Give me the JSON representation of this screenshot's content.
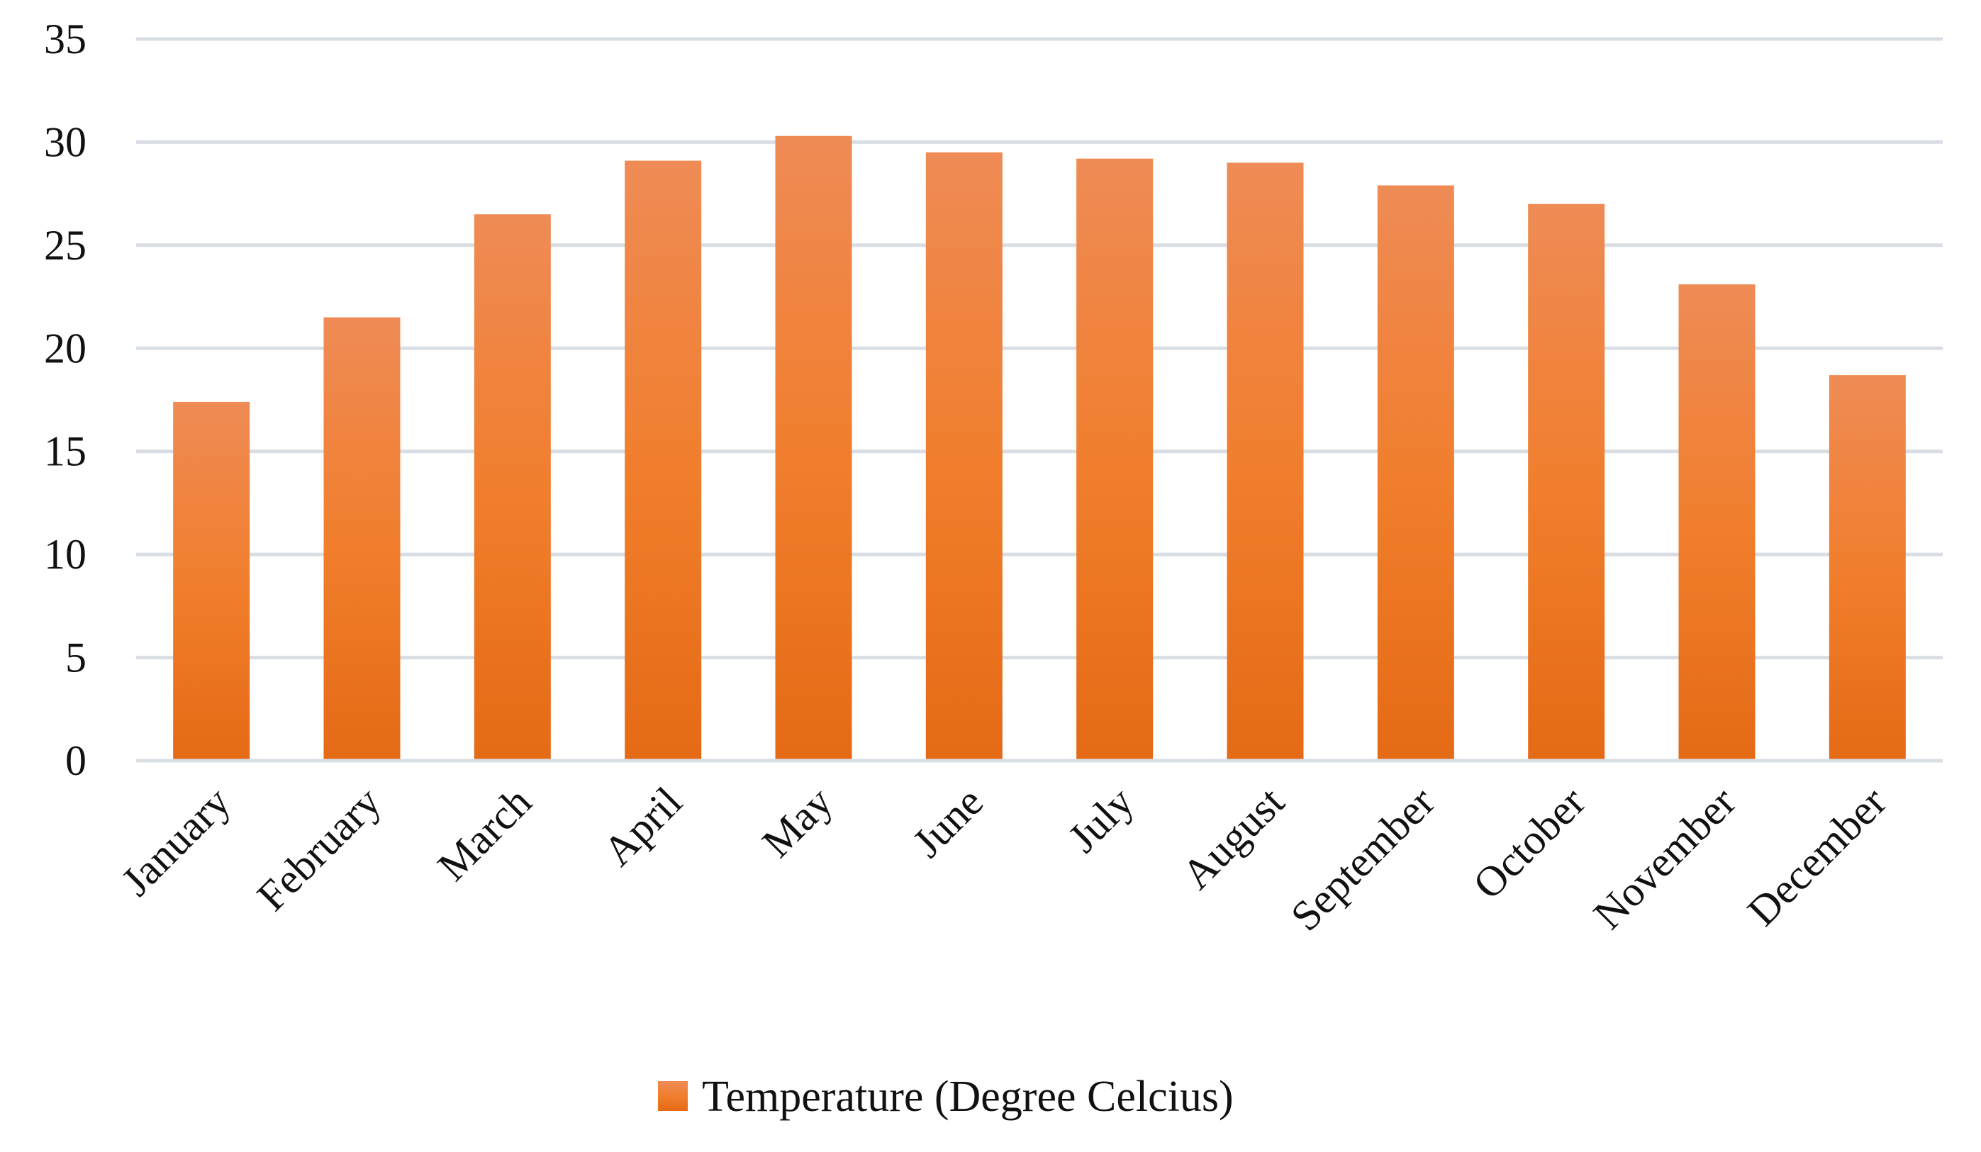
{
  "chart_data": {
    "type": "bar",
    "title": "",
    "xlabel": "",
    "ylabel": "",
    "ylim": [
      0,
      35
    ],
    "yticks": [
      "0",
      "5",
      "10",
      "15",
      "20",
      "25",
      "30",
      "35"
    ],
    "grid": true,
    "legend_position": "bottom-center",
    "categories": [
      "January",
      "February",
      "March",
      "April",
      "May",
      "June",
      "July",
      "August",
      "September",
      "October",
      "November",
      "December"
    ],
    "series": [
      {
        "name": "Temperature (Degree Celcius)",
        "values": [
          17.4,
          21.5,
          26.5,
          29.1,
          30.3,
          29.5,
          29.2,
          29.0,
          27.9,
          27.0,
          23.1,
          18.7
        ],
        "color": "#F07D2A",
        "color_light": "#EF8B55",
        "color_dark": "#E56A15"
      }
    ],
    "grid_color": "#D9DEE5"
  }
}
